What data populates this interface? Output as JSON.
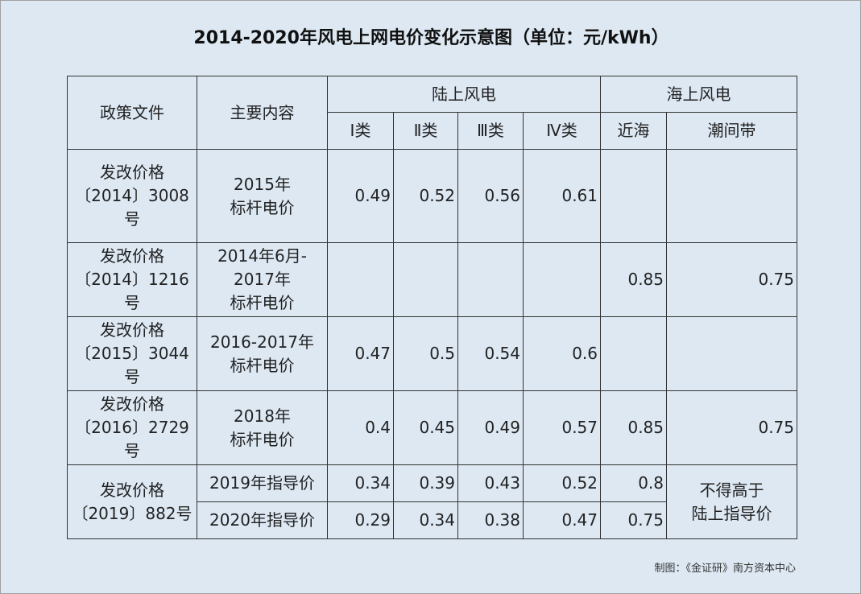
{
  "title": "2014-2020年风电上网电价变化示意图（单位：元/kWh）",
  "header": {
    "policy": "政策文件",
    "content": "主要内容",
    "onshore": "陆上风电",
    "offshore": "海上风电",
    "onshore_classes": [
      "Ⅰ类",
      "Ⅱ类",
      "Ⅲ类",
      "Ⅳ类"
    ],
    "offshore_types": [
      "近海",
      "潮间带"
    ]
  },
  "rows": [
    {
      "policy": [
        "发改价格",
        "〔2014〕3008",
        "号"
      ],
      "content": [
        "2015年",
        "标杆电价"
      ],
      "onshore": [
        0.49,
        0.52,
        0.56,
        0.61
      ]
    },
    {
      "policy": [
        "发改价格",
        "〔2014〕1216",
        "号"
      ],
      "content": [
        "2014年6月-",
        "2017年",
        "标杆电价"
      ],
      "offshore": [
        0.85,
        0.75
      ]
    },
    {
      "policy": [
        "发改价格",
        "〔2015〕3044",
        "号"
      ],
      "content": [
        "2016-2017年",
        "标杆电价"
      ],
      "onshore": [
        0.47,
        0.5,
        0.54,
        0.6
      ]
    },
    {
      "policy": [
        "发改价格",
        "〔2016〕2729",
        "号"
      ],
      "content": [
        "2018年",
        "标杆电价"
      ],
      "onshore": [
        0.4,
        0.45,
        0.49,
        0.57
      ],
      "offshore": [
        0.85,
        0.75
      ]
    },
    {
      "policy": [
        "发改价格",
        "〔2019〕882号"
      ],
      "content": [
        "2019年指导价"
      ],
      "onshore": [
        0.34,
        0.39,
        0.43,
        0.52
      ],
      "offshore_near": 0.8
    },
    {
      "content": [
        "2020年指导价"
      ],
      "onshore": [
        0.29,
        0.34,
        0.38,
        0.47
      ],
      "offshore_near": 0.75
    }
  ],
  "tidal_note": [
    "不得高于",
    "陆上指导价"
  ],
  "source": "制图：《金证研》南方资本中心"
}
